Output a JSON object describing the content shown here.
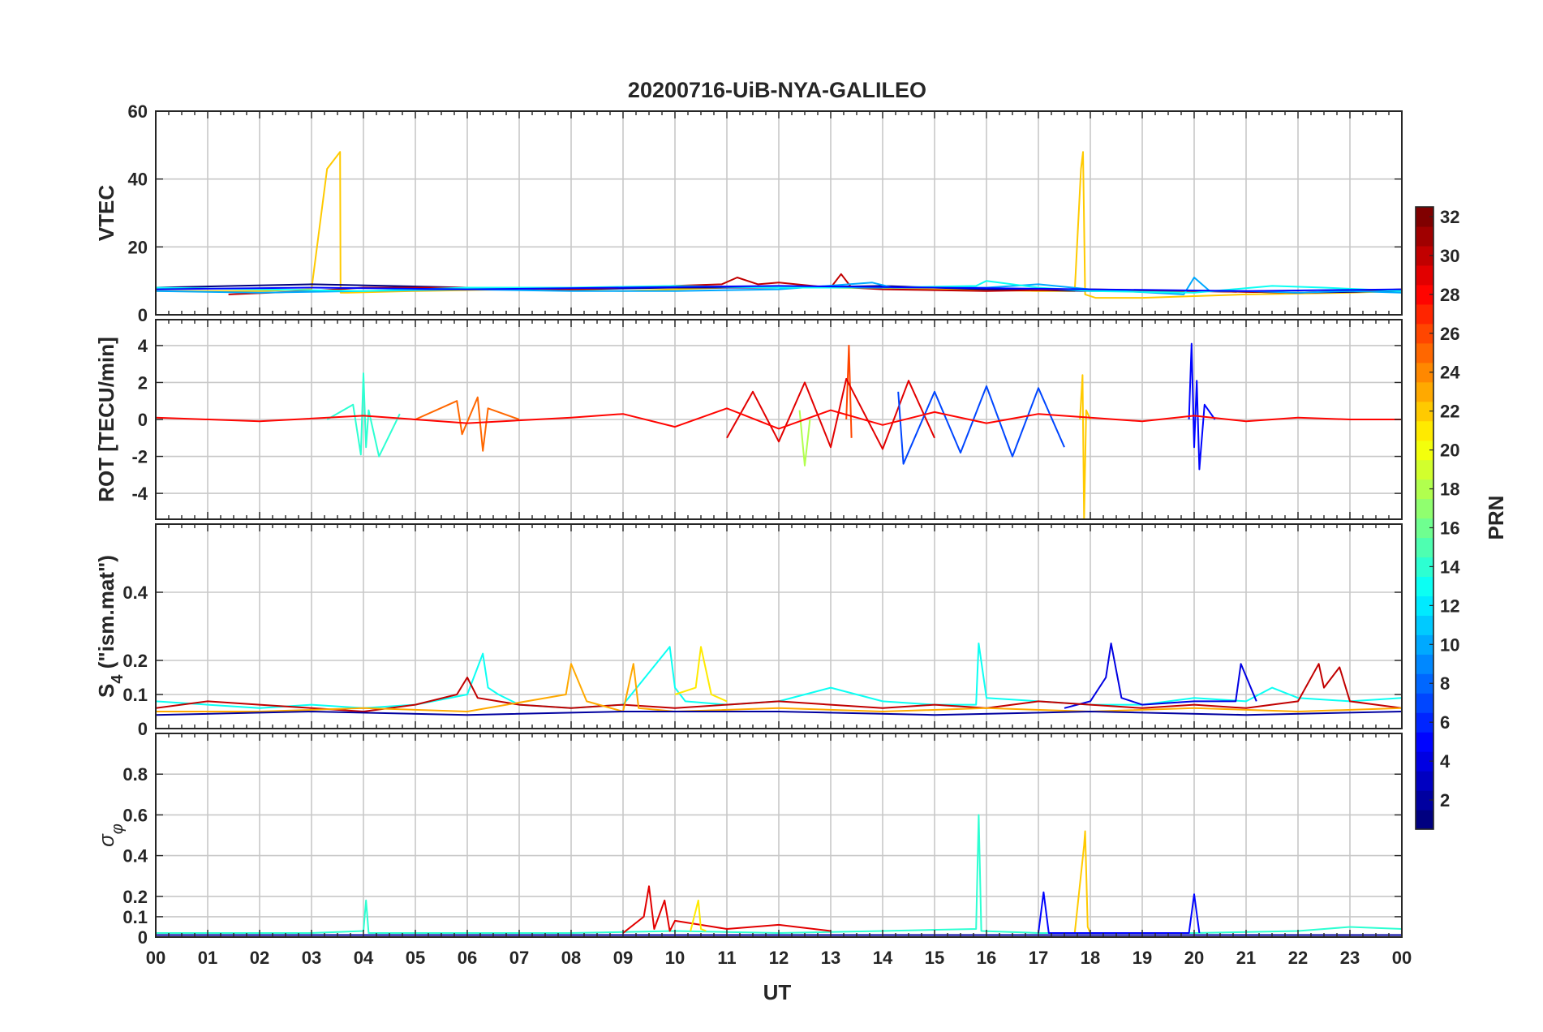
{
  "chart_data": [
    {
      "type": "line",
      "panel": "vtec",
      "title": "20200716-UiB-NYA-GALILEO",
      "ylabel": "VTEC",
      "xlabel": "",
      "xlim": [
        0,
        24
      ],
      "ylim": [
        0,
        60
      ],
      "yticks": [
        0,
        20,
        40,
        60
      ],
      "yticklabels": [
        "0",
        "20",
        "40",
        "60"
      ],
      "grid": true,
      "series": [
        {
          "prn": 22,
          "x": [
            0,
            1,
            2,
            3,
            3.3,
            3.55,
            3.56,
            3.7,
            5,
            7,
            9,
            11,
            13,
            15,
            17,
            17.7,
            17.82,
            17.86,
            17.9,
            18.1,
            19,
            21,
            23,
            24
          ],
          "y": [
            7,
            7,
            7,
            7.5,
            43,
            48,
            6.5,
            6.5,
            7,
            7.5,
            7,
            8,
            8,
            7.5,
            7,
            7,
            43,
            48,
            6,
            5,
            5,
            6,
            6.5,
            7
          ]
        },
        {
          "prn": 1,
          "x": [
            0,
            1.5,
            3,
            4.5,
            6,
            8,
            10,
            12,
            14,
            16,
            18,
            20,
            22,
            24
          ],
          "y": [
            8,
            8.5,
            9,
            8.5,
            8,
            7.5,
            8,
            8,
            8.5,
            7.5,
            7,
            7,
            6.5,
            7
          ]
        },
        {
          "prn": 30,
          "x": [
            1.4,
            3,
            4,
            6,
            8,
            10.9,
            11.2,
            11.6,
            12,
            13,
            13.2,
            13.4,
            14,
            16,
            18,
            20,
            22,
            24
          ],
          "y": [
            6,
            7,
            8,
            8,
            7.5,
            9,
            11,
            9,
            9.5,
            8,
            12,
            8,
            7.5,
            7,
            7.5,
            7,
            6.5,
            7.5
          ]
        },
        {
          "prn": 10,
          "x": [
            0,
            2,
            4,
            6,
            8,
            10,
            12,
            13.8,
            14.2,
            15,
            16,
            17,
            18,
            19.8,
            20,
            20.3,
            21,
            22,
            23,
            24
          ],
          "y": [
            7,
            6.5,
            7,
            7.5,
            7,
            7,
            7.5,
            9.5,
            8,
            8,
            8,
            9,
            7.5,
            6,
            11,
            7,
            7,
            6.5,
            7,
            6.5
          ]
        },
        {
          "prn": 13,
          "x": [
            0,
            2,
            4,
            6,
            8,
            10,
            12,
            14,
            15.8,
            16,
            17,
            18,
            20,
            21.5,
            22.5,
            24
          ],
          "y": [
            8,
            7.5,
            7,
            8,
            8,
            8.5,
            8,
            8,
            8.5,
            10,
            8,
            7,
            6.5,
            8.5,
            8,
            7
          ]
        },
        {
          "prn": 5,
          "x": [
            0,
            3,
            6,
            9,
            12,
            15,
            18,
            21,
            24
          ],
          "y": [
            7.5,
            8,
            7.5,
            8,
            8.5,
            8,
            7.5,
            7,
            7.5
          ]
        }
      ]
    },
    {
      "type": "line",
      "panel": "rot",
      "ylabel": "ROT [TECU/min]",
      "xlabel": "",
      "xlim": [
        0,
        24
      ],
      "ylim": [
        -5.4,
        5.4
      ],
      "yticks": [
        -4,
        -2,
        0,
        2,
        4
      ],
      "yticklabels": [
        "-4",
        "-2",
        "0",
        "2",
        "4"
      ],
      "grid": true,
      "series": [
        {
          "prn": 14,
          "x": [
            3.3,
            3.8,
            3.95,
            4.0,
            4.05,
            4.1,
            4.3,
            4.7
          ],
          "y": [
            0,
            0.8,
            -1.9,
            2.5,
            -1.5,
            0.5,
            -2,
            0.3
          ]
        },
        {
          "prn": 25,
          "x": [
            5,
            5.8,
            5.9,
            6.2,
            6.3,
            6.4,
            7
          ],
          "y": [
            0,
            1,
            -0.8,
            1.2,
            -1.7,
            0.6,
            0
          ]
        },
        {
          "prn": 26,
          "x": [
            13.3,
            13.35,
            13.4
          ],
          "y": [
            0,
            4,
            -1
          ]
        },
        {
          "prn": 18,
          "x": [
            12.4,
            12.5,
            12.6
          ],
          "y": [
            0.5,
            -2.5,
            0
          ]
        },
        {
          "prn": 29,
          "x": [
            11,
            11.5,
            12,
            12.5,
            13,
            13.3,
            14,
            14.5,
            15
          ],
          "y": [
            -1,
            1.5,
            -1.2,
            2,
            -1.5,
            2.2,
            -1.6,
            2.1,
            -1
          ]
        },
        {
          "prn": 7,
          "x": [
            14.3,
            14.4,
            15,
            15.5,
            16,
            16.5,
            17,
            17.5
          ],
          "y": [
            1.5,
            -2.4,
            1.5,
            -1.8,
            1.8,
            -2,
            1.7,
            -1.5
          ]
        },
        {
          "prn": 22,
          "x": [
            17.8,
            17.85,
            17.88,
            17.92,
            18.0
          ],
          "y": [
            0,
            2.4,
            -5.4,
            0.5,
            0
          ]
        },
        {
          "prn": 5,
          "x": [
            19.9,
            19.95,
            20.0,
            20.05,
            20.1,
            20.2,
            20.4
          ],
          "y": [
            0,
            4.1,
            -1.5,
            2.1,
            -2.7,
            0.8,
            0
          ]
        },
        {
          "prn": 28,
          "x": [
            0,
            2,
            4,
            6,
            8,
            9,
            10,
            11,
            12,
            13,
            14,
            15,
            16,
            17,
            18,
            19,
            20,
            21,
            22,
            23,
            24
          ],
          "y": [
            0.1,
            -0.1,
            0.2,
            -0.2,
            0.1,
            0.3,
            -0.4,
            0.6,
            -0.5,
            0.5,
            -0.3,
            0.4,
            -0.2,
            0.3,
            0.1,
            -0.1,
            0.2,
            -0.1,
            0.1,
            0,
            0
          ]
        }
      ]
    },
    {
      "type": "line",
      "panel": "s4",
      "ylabel": "S4 (\"ism.mat\")",
      "ylabel_main": "S",
      "ylabel_sub": "4",
      "ylabel_rest": " (\"ism.mat\")",
      "xlabel": "",
      "xlim": [
        0,
        24
      ],
      "ylim": [
        0,
        0.6
      ],
      "yticks": [
        0,
        0.1,
        0.2,
        0.4
      ],
      "yticklabels": [
        "0",
        "0.1",
        "0.2",
        "0.4"
      ],
      "grid": true,
      "series": [
        {
          "prn": 13,
          "x": [
            0,
            1,
            2,
            3,
            4,
            5,
            6,
            6.3,
            6.4,
            6.6,
            7,
            8,
            9,
            9.9,
            10,
            10.2,
            11,
            12,
            13,
            14,
            15,
            15.8,
            15.85,
            16,
            17,
            18,
            19,
            20,
            21,
            21.5,
            22,
            23,
            24
          ],
          "y": [
            0.08,
            0.07,
            0.06,
            0.07,
            0.06,
            0.07,
            0.1,
            0.22,
            0.12,
            0.1,
            0.07,
            0.06,
            0.07,
            0.24,
            0.12,
            0.08,
            0.07,
            0.08,
            0.12,
            0.08,
            0.07,
            0.07,
            0.25,
            0.09,
            0.08,
            0.07,
            0.07,
            0.09,
            0.08,
            0.12,
            0.09,
            0.08,
            0.09
          ]
        },
        {
          "prn": 21,
          "x": [
            10,
            10.4,
            10.5,
            10.7,
            11
          ],
          "y": [
            0.1,
            0.12,
            0.24,
            0.1,
            0.08
          ]
        },
        {
          "prn": 4,
          "x": [
            17.5,
            18,
            18.3,
            18.4,
            18.6,
            19,
            20,
            20.8,
            20.9,
            21.2
          ],
          "y": [
            0.06,
            0.08,
            0.15,
            0.25,
            0.09,
            0.07,
            0.08,
            0.08,
            0.19,
            0.08
          ]
        },
        {
          "prn": 30,
          "x": [
            0,
            1,
            2,
            3,
            4,
            5,
            5.8,
            6,
            6.2,
            7,
            8,
            9,
            10,
            11,
            12,
            13,
            14,
            15,
            16,
            17,
            18,
            19,
            20,
            21,
            22,
            22.4,
            22.5,
            22.8,
            23,
            24
          ],
          "y": [
            0.06,
            0.08,
            0.07,
            0.06,
            0.05,
            0.07,
            0.1,
            0.15,
            0.09,
            0.07,
            0.06,
            0.07,
            0.06,
            0.07,
            0.08,
            0.07,
            0.06,
            0.07,
            0.06,
            0.08,
            0.07,
            0.06,
            0.07,
            0.06,
            0.08,
            0.19,
            0.12,
            0.18,
            0.08,
            0.06
          ]
        },
        {
          "prn": 23,
          "x": [
            0,
            2,
            4,
            6,
            7.9,
            8,
            8.3,
            9,
            9.2,
            9.3,
            10,
            12,
            14,
            16,
            18,
            20,
            22,
            24
          ],
          "y": [
            0.05,
            0.05,
            0.06,
            0.05,
            0.1,
            0.19,
            0.08,
            0.05,
            0.19,
            0.06,
            0.05,
            0.06,
            0.05,
            0.06,
            0.05,
            0.06,
            0.05,
            0.06
          ]
        },
        {
          "prn": 2,
          "x": [
            0,
            3,
            6,
            9,
            12,
            15,
            18,
            21,
            24
          ],
          "y": [
            0.04,
            0.05,
            0.04,
            0.05,
            0.05,
            0.04,
            0.05,
            0.04,
            0.05
          ]
        }
      ]
    },
    {
      "type": "line",
      "panel": "sigma_phi",
      "ylabel": "σ φ",
      "ylabel_main": "σ",
      "ylabel_sub": "φ",
      "xlabel": "UT",
      "xlim": [
        0,
        24
      ],
      "ylim": [
        0,
        1.0
      ],
      "yticks": [
        0,
        0.1,
        0.2,
        0.4,
        0.6,
        0.8
      ],
      "yticklabels": [
        "0",
        "0.1",
        "0.2",
        "0.4",
        "0.6",
        "0.8"
      ],
      "grid": true,
      "series": [
        {
          "prn": 14,
          "x": [
            0,
            3,
            4.0,
            4.05,
            4.1,
            5,
            8,
            10,
            12,
            14,
            15.8,
            15.85,
            15.9,
            17,
            20,
            22,
            23,
            24
          ],
          "y": [
            0.02,
            0.02,
            0.03,
            0.18,
            0.02,
            0.02,
            0.02,
            0.03,
            0.02,
            0.03,
            0.04,
            0.6,
            0.03,
            0.02,
            0.02,
            0.03,
            0.05,
            0.04
          ]
        },
        {
          "prn": 29,
          "x": [
            9,
            9.4,
            9.5,
            9.6,
            9.8,
            9.9,
            10,
            11,
            12,
            13
          ],
          "y": [
            0.02,
            0.1,
            0.25,
            0.04,
            0.18,
            0.03,
            0.08,
            0.04,
            0.06,
            0.03
          ]
        },
        {
          "prn": 21,
          "x": [
            10.3,
            10.45,
            10.5,
            10.6
          ],
          "y": [
            0.03,
            0.18,
            0.04,
            0.03
          ]
        },
        {
          "prn": 22,
          "x": [
            17.7,
            17.88,
            17.9,
            17.95,
            18.0
          ],
          "y": [
            0.02,
            0.45,
            0.52,
            0.05,
            0.02
          ]
        },
        {
          "prn": 5,
          "x": [
            17,
            17.1,
            17.2,
            19.9,
            20.0,
            20.1
          ],
          "y": [
            0.02,
            0.22,
            0.02,
            0.02,
            0.21,
            0.02
          ]
        },
        {
          "prn": 2,
          "x": [
            0,
            4,
            8,
            12,
            16,
            20,
            24
          ],
          "y": [
            0.01,
            0.01,
            0.01,
            0.01,
            0.01,
            0.01,
            0.01
          ]
        }
      ]
    },
    {
      "type": "colorbar",
      "label": "PRN",
      "colormap": "jet",
      "clim": [
        1,
        32
      ],
      "ticks": [
        2,
        4,
        6,
        8,
        10,
        12,
        14,
        16,
        18,
        20,
        22,
        24,
        26,
        28,
        30,
        32
      ]
    }
  ],
  "xticks": [
    0,
    1,
    2,
    3,
    4,
    5,
    6,
    7,
    8,
    9,
    10,
    11,
    12,
    13,
    14,
    15,
    16,
    17,
    18,
    19,
    20,
    21,
    22,
    23,
    24
  ],
  "xticklabels": [
    "00",
    "01",
    "02",
    "03",
    "04",
    "05",
    "06",
    "07",
    "08",
    "09",
    "10",
    "11",
    "12",
    "13",
    "14",
    "15",
    "16",
    "17",
    "18",
    "19",
    "20",
    "21",
    "22",
    "23",
    "00"
  ]
}
